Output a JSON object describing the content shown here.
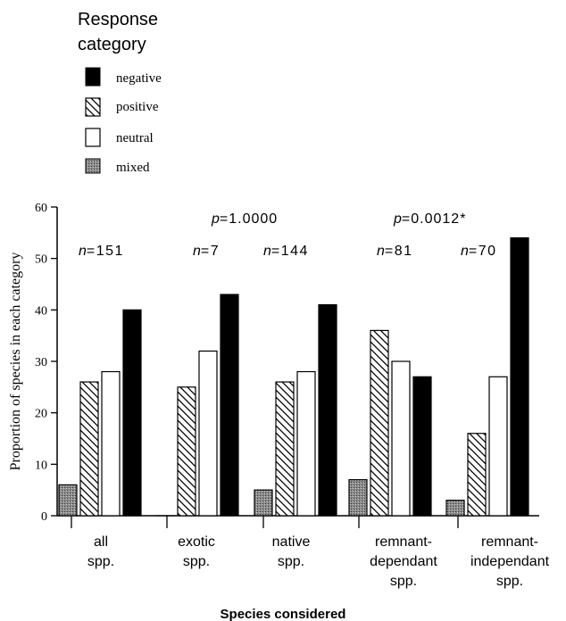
{
  "chart_data": {
    "type": "bar",
    "title": "",
    "xlabel": "Species  considered",
    "ylabel": "Proportion of species in each category",
    "ylim": [
      0,
      60
    ],
    "yticks": [
      "0",
      "10",
      "20",
      "30",
      "40",
      "50",
      "60"
    ],
    "categories": [
      [
        "all",
        "spp."
      ],
      [
        "exotic",
        "spp."
      ],
      [
        "native",
        "spp."
      ],
      [
        "remnant-",
        "dependant",
        "spp."
      ],
      [
        "remnant-",
        "independant",
        "spp."
      ]
    ],
    "sample_sizes": [
      "n=151",
      "n=7",
      "n=144",
      "n=81",
      "n=70"
    ],
    "p_values": [
      {
        "text": "p=1.0000",
        "applies_to": "exotic vs native"
      },
      {
        "text": "p=0.0012*",
        "applies_to": "remnant-dependant vs remnant-independant"
      }
    ],
    "legend": {
      "title": [
        "Response",
        "category"
      ],
      "position": "top-left",
      "entries": [
        {
          "label": "negative",
          "fill": "solid-black"
        },
        {
          "label": "positive",
          "fill": "diagonal-hatch"
        },
        {
          "label": "neutral",
          "fill": "white"
        },
        {
          "label": "mixed",
          "fill": "gray-stipple"
        }
      ]
    },
    "series": [
      {
        "name": "mixed",
        "values": [
          6,
          0,
          5,
          7,
          3
        ]
      },
      {
        "name": "positive",
        "values": [
          26,
          25,
          26,
          36,
          16
        ]
      },
      {
        "name": "neutral",
        "values": [
          28,
          32,
          28,
          30,
          27
        ]
      },
      {
        "name": "negative",
        "values": [
          40,
          43,
          41,
          27,
          54
        ]
      }
    ],
    "colors": {
      "negative": "#000000",
      "neutral": "#ffffff",
      "mixed": "#8a8a8a",
      "hatch": "#000000"
    },
    "grid": false
  }
}
